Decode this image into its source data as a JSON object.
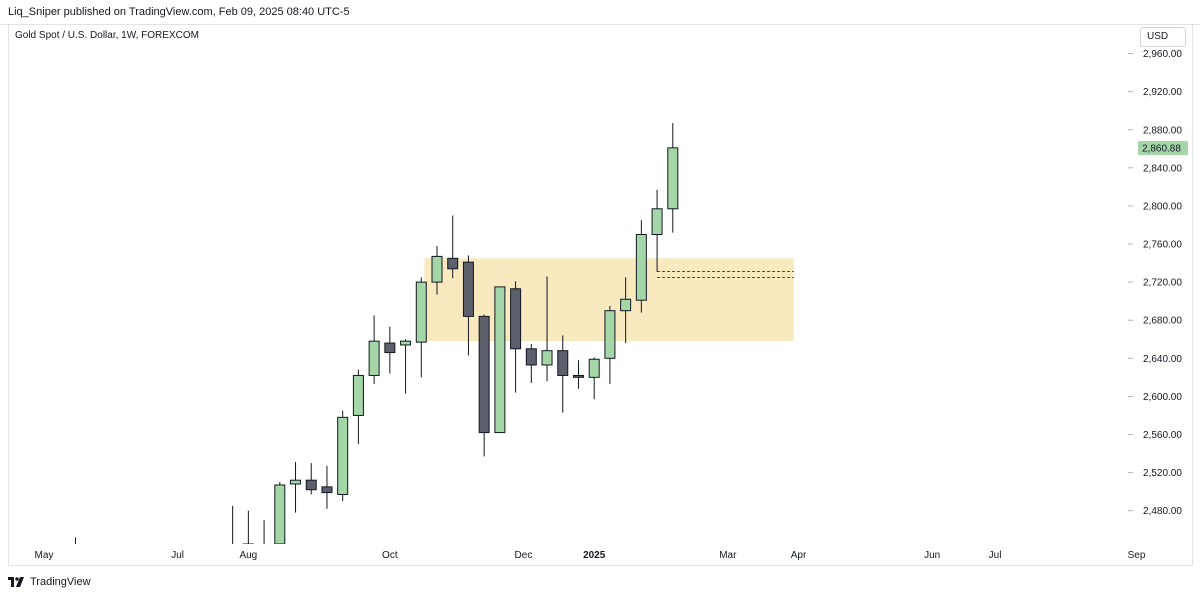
{
  "header": {
    "published_text": "Liq_Sniper published on TradingView.com, Feb 09, 2025 08:40 UTC-5"
  },
  "symbol": {
    "title": "Gold Spot / U.S. Dollar, 1W, FOREXCOM"
  },
  "currency_label": "USD",
  "footer": {
    "brand": "TradingView",
    "logo_icon": "tradingview-logo-icon"
  },
  "colors": {
    "up_fill": "#a5d6a7",
    "down_fill": "#5d606b",
    "wick": "#131722",
    "zone": "#f8e9bf",
    "last_price_bg": "#a5d6a7"
  },
  "chart_data": {
    "type": "candlestick",
    "title": "",
    "xlabel": "",
    "ylabel": "",
    "ylim": [
      2445,
      2990
    ],
    "y_ticks": [
      "2,480.00",
      "2,520.00",
      "2,560.00",
      "2,600.00",
      "2,640.00",
      "2,680.00",
      "2,720.00",
      "2,760.00",
      "2,800.00",
      "2,840.00",
      "2,880.00",
      "2,920.00",
      "2,960.00"
    ],
    "x_ticks": [
      {
        "label": "May",
        "week": 0,
        "bold": false
      },
      {
        "label": "Jul",
        "week": 8.5,
        "bold": false
      },
      {
        "label": "Aug",
        "week": 13,
        "bold": false
      },
      {
        "label": "Oct",
        "week": 22,
        "bold": false
      },
      {
        "label": "Dec",
        "week": 30.5,
        "bold": false
      },
      {
        "label": "2025",
        "week": 35,
        "bold": true
      },
      {
        "label": "Mar",
        "week": 43.5,
        "bold": false
      },
      {
        "label": "Apr",
        "week": 48,
        "bold": false
      },
      {
        "label": "Jun",
        "week": 56.5,
        "bold": false
      },
      {
        "label": "Jul",
        "week": 60.5,
        "bold": false
      },
      {
        "label": "Sep",
        "week": 69.5,
        "bold": false
      }
    ],
    "last_price": "2,860.88",
    "last_price_value": 2860.88,
    "zone": {
      "week_start": 24.2,
      "week_end": 47.7,
      "price_low": 2658,
      "price_high": 2745
    },
    "dashed_levels": [
      {
        "week_start": 39,
        "week_end": 47.7,
        "price": 2731
      },
      {
        "week_start": 39,
        "week_end": 47.7,
        "price": 2725
      }
    ],
    "candles": [
      {
        "week": 2,
        "open": 2415,
        "high": 2452,
        "low": 2400,
        "close": 2420
      },
      {
        "week": 12,
        "open": 2425,
        "high": 2485,
        "low": 2410,
        "close": 2440
      },
      {
        "week": 13,
        "open": 2440,
        "high": 2480,
        "low": 2432,
        "close": 2445
      },
      {
        "week": 14,
        "open": 2443,
        "high": 2470,
        "low": 2438,
        "close": 2444
      },
      {
        "week": 15,
        "open": 2445,
        "high": 2510,
        "low": 2440,
        "close": 2507
      },
      {
        "week": 16,
        "open": 2508,
        "high": 2531,
        "low": 2478,
        "close": 2512
      },
      {
        "week": 17,
        "open": 2512,
        "high": 2530,
        "low": 2497,
        "close": 2502
      },
      {
        "week": 18,
        "open": 2505,
        "high": 2527,
        "low": 2482,
        "close": 2499
      },
      {
        "week": 19,
        "open": 2497,
        "high": 2585,
        "low": 2490,
        "close": 2578
      },
      {
        "week": 20,
        "open": 2580,
        "high": 2628,
        "low": 2550,
        "close": 2622
      },
      {
        "week": 21,
        "open": 2622,
        "high": 2685,
        "low": 2613,
        "close": 2658
      },
      {
        "week": 22,
        "open": 2656,
        "high": 2673,
        "low": 2624,
        "close": 2646
      },
      {
        "week": 23,
        "open": 2654,
        "high": 2660,
        "low": 2603,
        "close": 2658
      },
      {
        "week": 24,
        "open": 2657,
        "high": 2725,
        "low": 2620,
        "close": 2720
      },
      {
        "week": 25,
        "open": 2720,
        "high": 2758,
        "low": 2707,
        "close": 2747
      },
      {
        "week": 26,
        "open": 2745,
        "high": 2790,
        "low": 2724,
        "close": 2734
      },
      {
        "week": 27,
        "open": 2741,
        "high": 2748,
        "low": 2643,
        "close": 2684
      },
      {
        "week": 28,
        "open": 2684,
        "high": 2686,
        "low": 2537,
        "close": 2562
      },
      {
        "week": 29,
        "open": 2562,
        "high": 2715,
        "low": 2562,
        "close": 2715
      },
      {
        "week": 30,
        "open": 2713,
        "high": 2721,
        "low": 2604,
        "close": 2650
      },
      {
        "week": 31,
        "open": 2650,
        "high": 2655,
        "low": 2614,
        "close": 2633
      },
      {
        "week": 32,
        "open": 2633,
        "high": 2726,
        "low": 2616,
        "close": 2648
      },
      {
        "week": 33,
        "open": 2648,
        "high": 2664,
        "low": 2583,
        "close": 2622
      },
      {
        "week": 34,
        "open": 2622,
        "high": 2638,
        "low": 2608,
        "close": 2620
      },
      {
        "week": 35,
        "open": 2620,
        "high": 2641,
        "low": 2597,
        "close": 2639
      },
      {
        "week": 36,
        "open": 2640,
        "high": 2695,
        "low": 2613,
        "close": 2690
      },
      {
        "week": 37,
        "open": 2690,
        "high": 2725,
        "low": 2656,
        "close": 2702
      },
      {
        "week": 38,
        "open": 2701,
        "high": 2785,
        "low": 2688,
        "close": 2770
      },
      {
        "week": 39,
        "open": 2770,
        "high": 2817,
        "low": 2731,
        "close": 2797
      },
      {
        "week": 40,
        "open": 2797,
        "high": 2887,
        "low": 2772,
        "close": 2861
      }
    ]
  }
}
